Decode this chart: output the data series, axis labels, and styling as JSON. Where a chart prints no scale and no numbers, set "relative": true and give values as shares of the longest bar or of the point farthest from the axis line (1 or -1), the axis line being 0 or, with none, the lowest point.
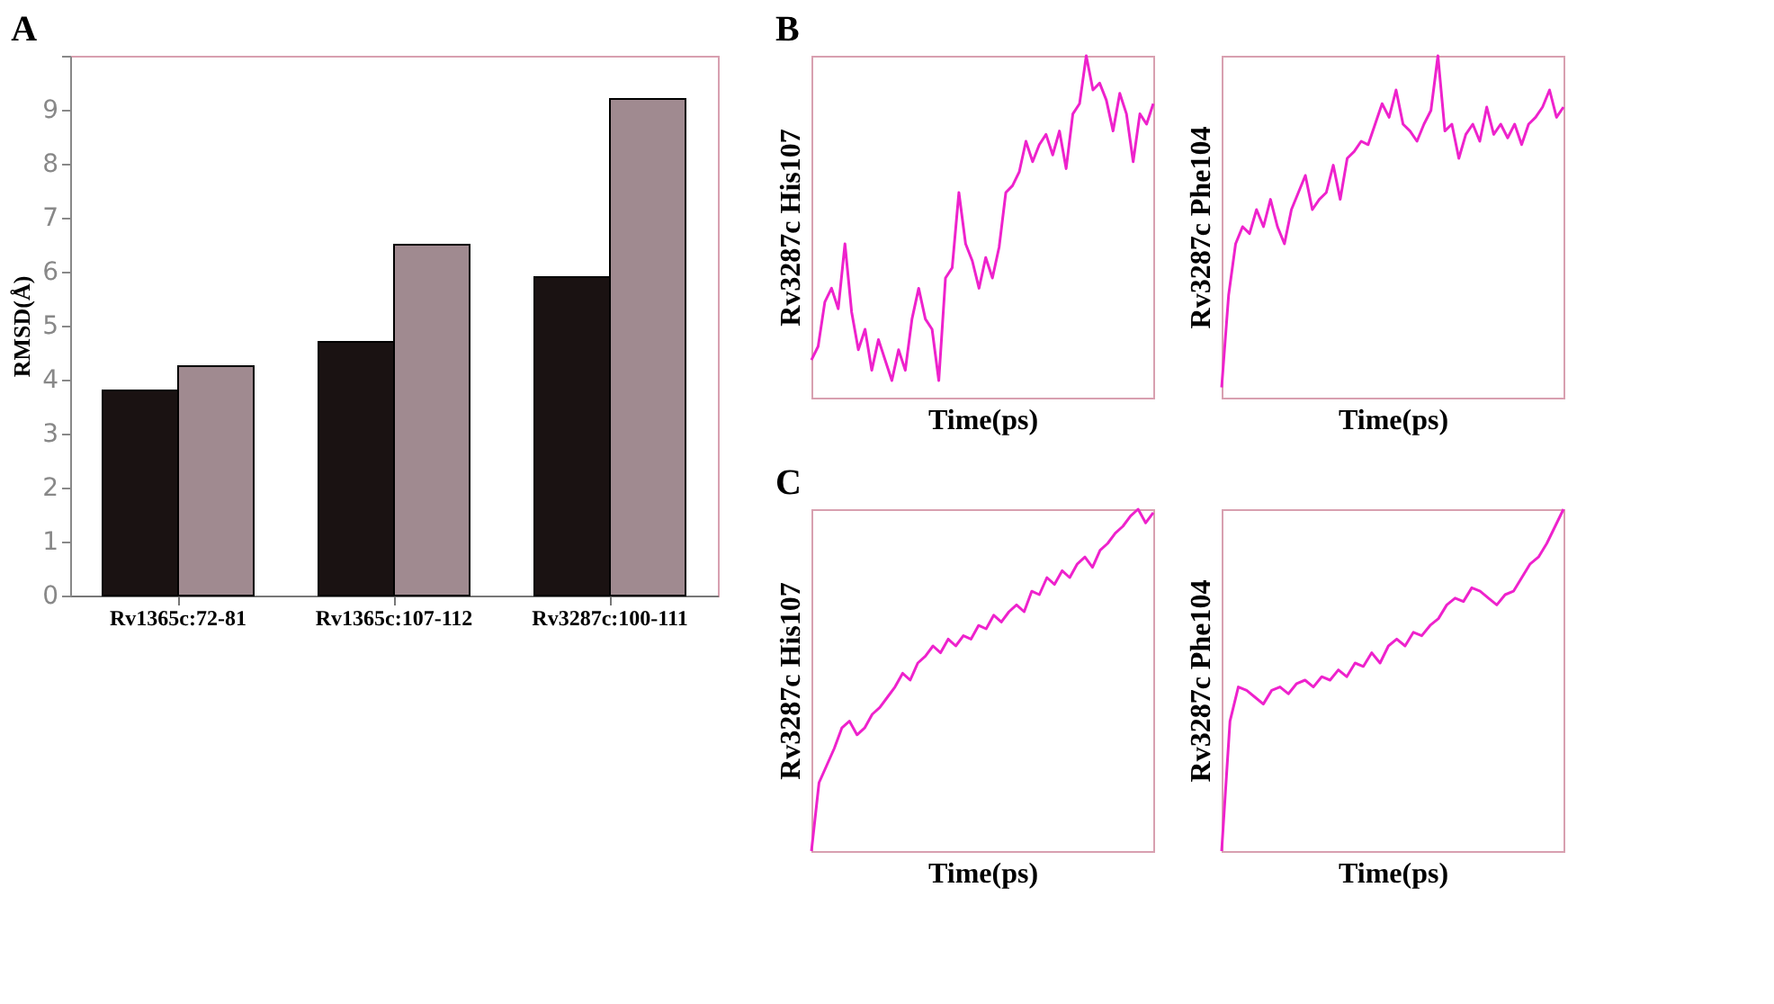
{
  "chart_data": [
    {
      "type": "bar",
      "title": "A",
      "ylabel": "RMSD(Å)",
      "categories": [
        "Rv1365c:72-81",
        "Rv1365c:107-112",
        "Rv3287c:100-111"
      ],
      "series": [
        {
          "color": "#1a1212",
          "values": [
            3.8,
            4.7,
            5.9
          ]
        },
        {
          "color": "#a08a90",
          "values": [
            4.25,
            6.5,
            9.2
          ]
        }
      ],
      "ylim": [
        0,
        10
      ],
      "yticks": [
        0,
        1,
        2,
        3,
        4,
        5,
        6,
        7,
        8,
        9,
        {
          "value": 10,
          "label": null
        }
      ],
      "grid": false,
      "legend": false
    },
    {
      "type": "line",
      "title": "B",
      "relative": true,
      "xlabel": "Time(ps)",
      "ylabel": "Rv3287c His107",
      "tick_labels": false,
      "grid": false,
      "categories": [
        null,
        null,
        null,
        null,
        null,
        null,
        null,
        null,
        null,
        null,
        null,
        null,
        null,
        null,
        null,
        null,
        null,
        null,
        null,
        null,
        null,
        null,
        null,
        null,
        null,
        null,
        null,
        null,
        null,
        null,
        null,
        null,
        null,
        null,
        null,
        null,
        null,
        null,
        null,
        null,
        null,
        null,
        null,
        null,
        null,
        null,
        null,
        null,
        null,
        null,
        null,
        null
      ],
      "series": [
        {
          "color": "#ee22cc",
          "values": [
            0.11,
            0.15,
            0.28,
            0.32,
            0.26,
            0.45,
            0.25,
            0.14,
            0.2,
            0.08,
            0.17,
            0.11,
            0.05,
            0.14,
            0.08,
            0.23,
            0.32,
            0.23,
            0.2,
            0.05,
            0.35,
            0.38,
            0.6,
            0.45,
            0.4,
            0.32,
            0.41,
            0.35,
            0.44,
            0.6,
            0.62,
            0.66,
            0.75,
            0.69,
            0.74,
            0.77,
            0.71,
            0.78,
            0.67,
            0.83,
            0.86,
            1.0,
            0.9,
            0.92,
            0.87,
            0.78,
            0.89,
            0.83,
            0.69,
            0.83,
            0.8,
            0.86
          ]
        }
      ]
    },
    {
      "type": "line",
      "relative": true,
      "xlabel": "Time(ps)",
      "ylabel": "Rv3287c Phe104",
      "tick_labels": false,
      "grid": false,
      "categories": [
        null,
        null,
        null,
        null,
        null,
        null,
        null,
        null,
        null,
        null,
        null,
        null,
        null,
        null,
        null,
        null,
        null,
        null,
        null,
        null,
        null,
        null,
        null,
        null,
        null,
        null,
        null,
        null,
        null,
        null,
        null,
        null,
        null,
        null,
        null,
        null,
        null,
        null,
        null,
        null,
        null,
        null,
        null,
        null,
        null,
        null,
        null,
        null,
        null,
        null
      ],
      "series": [
        {
          "color": "#ee22cc",
          "values": [
            0.03,
            0.3,
            0.45,
            0.5,
            0.48,
            0.55,
            0.5,
            0.58,
            0.5,
            0.45,
            0.55,
            0.6,
            0.65,
            0.55,
            0.58,
            0.6,
            0.68,
            0.58,
            0.7,
            0.72,
            0.75,
            0.74,
            0.8,
            0.86,
            0.82,
            0.9,
            0.8,
            0.78,
            0.75,
            0.8,
            0.84,
            1.0,
            0.78,
            0.8,
            0.7,
            0.77,
            0.8,
            0.75,
            0.85,
            0.77,
            0.8,
            0.76,
            0.8,
            0.74,
            0.8,
            0.82,
            0.85,
            0.9,
            0.82,
            0.85
          ]
        }
      ]
    },
    {
      "type": "line",
      "title": "C",
      "relative": true,
      "xlabel": "Time(ps)",
      "ylabel": "Rv3287c His107",
      "tick_labels": false,
      "grid": false,
      "categories": [
        null,
        null,
        null,
        null,
        null,
        null,
        null,
        null,
        null,
        null,
        null,
        null,
        null,
        null,
        null,
        null,
        null,
        null,
        null,
        null,
        null,
        null,
        null,
        null,
        null,
        null,
        null,
        null,
        null,
        null,
        null,
        null,
        null,
        null,
        null,
        null,
        null,
        null,
        null,
        null,
        null,
        null,
        null,
        null,
        null,
        null
      ],
      "series": [
        {
          "color": "#ee22cc",
          "values": [
            0.0,
            0.2,
            0.25,
            0.3,
            0.36,
            0.38,
            0.34,
            0.36,
            0.4,
            0.42,
            0.45,
            0.48,
            0.52,
            0.5,
            0.55,
            0.57,
            0.6,
            0.58,
            0.62,
            0.6,
            0.63,
            0.62,
            0.66,
            0.65,
            0.69,
            0.67,
            0.7,
            0.72,
            0.7,
            0.76,
            0.75,
            0.8,
            0.78,
            0.82,
            0.8,
            0.84,
            0.86,
            0.83,
            0.88,
            0.9,
            0.93,
            0.95,
            0.98,
            1.0,
            0.96,
            0.99
          ]
        }
      ]
    },
    {
      "type": "line",
      "relative": true,
      "xlabel": "Time(ps)",
      "ylabel": "Rv3287c Phe104",
      "tick_labels": false,
      "grid": false,
      "categories": [
        null,
        null,
        null,
        null,
        null,
        null,
        null,
        null,
        null,
        null,
        null,
        null,
        null,
        null,
        null,
        null,
        null,
        null,
        null,
        null,
        null,
        null,
        null,
        null,
        null,
        null,
        null,
        null,
        null,
        null,
        null,
        null,
        null,
        null,
        null,
        null,
        null,
        null,
        null,
        null,
        null,
        null
      ],
      "series": [
        {
          "color": "#ee22cc",
          "values": [
            0.0,
            0.38,
            0.48,
            0.47,
            0.45,
            0.43,
            0.47,
            0.48,
            0.46,
            0.49,
            0.5,
            0.48,
            0.51,
            0.5,
            0.53,
            0.51,
            0.55,
            0.54,
            0.58,
            0.55,
            0.6,
            0.62,
            0.6,
            0.64,
            0.63,
            0.66,
            0.68,
            0.72,
            0.74,
            0.73,
            0.77,
            0.76,
            0.74,
            0.72,
            0.75,
            0.76,
            0.8,
            0.84,
            0.86,
            0.9,
            0.95,
            1.0
          ]
        }
      ]
    }
  ]
}
